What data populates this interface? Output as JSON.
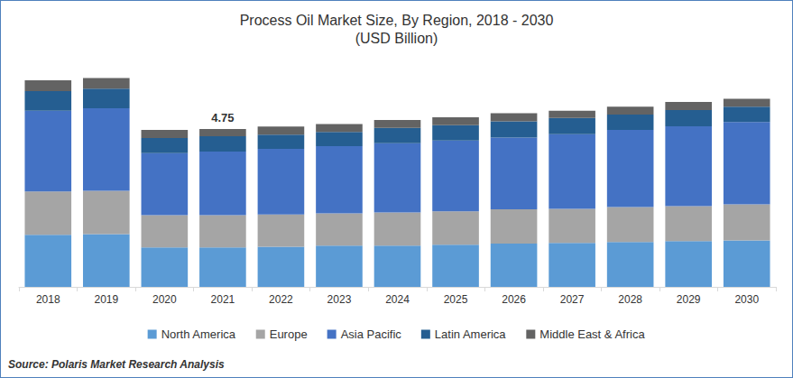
{
  "chart_data": {
    "type": "bar",
    "title": "Process Oil Market Size, By Region, 2018 - 2030",
    "subtitle": "(USD Billion)",
    "categories": [
      "2018",
      "2019",
      "2020",
      "2021",
      "2022",
      "2023",
      "2024",
      "2025",
      "2026",
      "2027",
      "2028",
      "2029",
      "2030"
    ],
    "series": [
      {
        "name": "North America",
        "color": "#5b9bd5",
        "values": [
          1.57,
          1.59,
          1.19,
          1.19,
          1.21,
          1.24,
          1.24,
          1.27,
          1.3,
          1.32,
          1.35,
          1.38,
          1.4
        ]
      },
      {
        "name": "Europe",
        "color": "#a5a5a5",
        "values": [
          1.3,
          1.3,
          0.97,
          0.97,
          0.97,
          0.97,
          1.0,
          1.0,
          1.03,
          1.03,
          1.05,
          1.05,
          1.08
        ]
      },
      {
        "name": "Asia Pacific",
        "color": "#4472c4",
        "values": [
          2.43,
          2.48,
          1.86,
          1.91,
          1.97,
          2.02,
          2.08,
          2.13,
          2.16,
          2.24,
          2.32,
          2.4,
          2.48
        ]
      },
      {
        "name": "Latin America",
        "color": "#255e91",
        "values": [
          0.59,
          0.59,
          0.46,
          0.46,
          0.43,
          0.43,
          0.46,
          0.46,
          0.49,
          0.49,
          0.46,
          0.49,
          0.46
        ]
      },
      {
        "name": "Middle East & Africa",
        "color": "#636363",
        "values": [
          0.32,
          0.32,
          0.24,
          0.22,
          0.24,
          0.24,
          0.24,
          0.24,
          0.24,
          0.22,
          0.24,
          0.24,
          0.24
        ]
      }
    ],
    "ylim": [
      0,
      7
    ],
    "stacked": true,
    "grid": false,
    "legend": "bottom",
    "tick_labels": "x",
    "annotations": [
      {
        "text": "4.75",
        "x": "2021",
        "y": 4.75
      }
    ],
    "source": "Source: Polaris Market Research Analysis"
  }
}
